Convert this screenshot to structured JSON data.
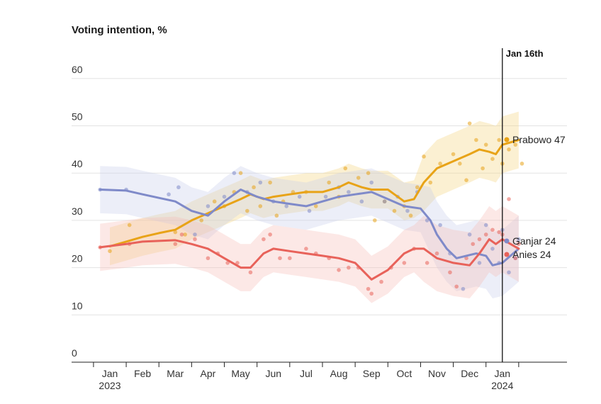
{
  "chart_data": {
    "type": "line",
    "title": "Voting intention, %",
    "ylim": [
      0,
      60
    ],
    "y_ticks": [
      "60",
      "50",
      "40",
      "30",
      "20",
      "10",
      "0"
    ],
    "y_tick_values": [
      60,
      50,
      40,
      30,
      20,
      10,
      0
    ],
    "grid": true,
    "x_ticks": [
      {
        "label": "Jan",
        "month": 0,
        "year": "2023"
      },
      {
        "label": "Feb",
        "month": 1
      },
      {
        "label": "Mar",
        "month": 2
      },
      {
        "label": "Apr",
        "month": 3
      },
      {
        "label": "May",
        "month": 4
      },
      {
        "label": "Jun",
        "month": 5
      },
      {
        "label": "Jul",
        "month": 6
      },
      {
        "label": "Aug",
        "month": 7
      },
      {
        "label": "Sep",
        "month": 8
      },
      {
        "label": "Oct",
        "month": 9
      },
      {
        "label": "Nov",
        "month": 10
      },
      {
        "label": "Dec",
        "month": 11
      },
      {
        "label": "Jan",
        "month": 12,
        "year": "2024"
      }
    ],
    "marker": {
      "label": "Jan 16th",
      "month": 12.0
    },
    "series": [
      {
        "name": "Prabowo",
        "end_label": "Prabowo 47",
        "color": "#e8a317",
        "band_color": "#f3d37e",
        "values": [
          [
            0,
            24.5
          ],
          [
            0.5,
            25.5
          ],
          [
            1,
            26.5
          ],
          [
            1.5,
            27.3
          ],
          [
            2,
            28
          ],
          [
            2.5,
            30
          ],
          [
            3,
            31.5
          ],
          [
            3.5,
            33
          ],
          [
            4,
            34.5
          ],
          [
            4.3,
            35.5
          ],
          [
            4.7,
            34.5
          ],
          [
            5,
            35
          ],
          [
            5.5,
            35.5
          ],
          [
            6,
            36
          ],
          [
            6.5,
            36
          ],
          [
            7,
            37
          ],
          [
            7.3,
            38
          ],
          [
            7.7,
            37
          ],
          [
            8,
            36.5
          ],
          [
            8.5,
            36.5
          ],
          [
            8.7,
            35.5
          ],
          [
            9,
            34
          ],
          [
            9.3,
            34.5
          ],
          [
            9.6,
            38
          ],
          [
            10,
            41
          ],
          [
            10.5,
            42.5
          ],
          [
            11,
            44
          ],
          [
            11.3,
            45
          ],
          [
            11.6,
            44.5
          ],
          [
            11.8,
            44
          ],
          [
            12,
            46
          ],
          [
            12.5,
            47
          ]
        ],
        "band": [
          4,
          6
        ],
        "points": [
          [
            0,
            23.5
          ],
          [
            0.6,
            29
          ],
          [
            2,
            27.5
          ],
          [
            2.3,
            27
          ],
          [
            2.8,
            30
          ],
          [
            3.2,
            34
          ],
          [
            3.5,
            33
          ],
          [
            3.8,
            36
          ],
          [
            4,
            40
          ],
          [
            4.2,
            32
          ],
          [
            4.4,
            37
          ],
          [
            4.6,
            33
          ],
          [
            4.9,
            38
          ],
          [
            5.1,
            31
          ],
          [
            5.3,
            34
          ],
          [
            5.6,
            36
          ],
          [
            6,
            36
          ],
          [
            6.3,
            33
          ],
          [
            6.7,
            38
          ],
          [
            7,
            35
          ],
          [
            7.2,
            41
          ],
          [
            7.6,
            39
          ],
          [
            7.9,
            40
          ],
          [
            8.1,
            30
          ],
          [
            8.4,
            34
          ],
          [
            8.7,
            32
          ],
          [
            9,
            33
          ],
          [
            9.2,
            31
          ],
          [
            9.4,
            37
          ],
          [
            9.6,
            43.5
          ],
          [
            9.8,
            38
          ],
          [
            10.1,
            42
          ],
          [
            10.5,
            44
          ],
          [
            10.7,
            42
          ],
          [
            10.9,
            38.5
          ],
          [
            11,
            50.5
          ],
          [
            11.2,
            47
          ],
          [
            11.4,
            41
          ],
          [
            11.5,
            46
          ],
          [
            11.7,
            43
          ],
          [
            11.9,
            47
          ],
          [
            12,
            42
          ],
          [
            12.2,
            45
          ],
          [
            12.4,
            46
          ],
          [
            12.6,
            42
          ]
        ]
      },
      {
        "name": "Ganjar",
        "end_label": "Ganjar 24",
        "color": "#7f8ac9",
        "band_color": "#c8cdec",
        "values": [
          [
            -0.3,
            36.5
          ],
          [
            0.5,
            36.3
          ],
          [
            1,
            35.5
          ],
          [
            2,
            34
          ],
          [
            2.5,
            32
          ],
          [
            3,
            31
          ],
          [
            3.5,
            34
          ],
          [
            4,
            36.5
          ],
          [
            4.5,
            35
          ],
          [
            5,
            34
          ],
          [
            5.5,
            33.5
          ],
          [
            6,
            33
          ],
          [
            6.5,
            34
          ],
          [
            7,
            35
          ],
          [
            7.5,
            35.5
          ],
          [
            8,
            36
          ],
          [
            8.5,
            34.5
          ],
          [
            9,
            33
          ],
          [
            9.5,
            32.5
          ],
          [
            9.8,
            30
          ],
          [
            10,
            27
          ],
          [
            10.3,
            24
          ],
          [
            10.6,
            22
          ],
          [
            10.9,
            22.5
          ],
          [
            11.2,
            23
          ],
          [
            11.5,
            22.5
          ],
          [
            11.7,
            20.5
          ],
          [
            12,
            21
          ],
          [
            12.5,
            24
          ]
        ],
        "band": [
          5,
          7
        ],
        "points": [
          [
            -0.3,
            36.5
          ],
          [
            0.5,
            36.5
          ],
          [
            1.8,
            35.5
          ],
          [
            2.1,
            37
          ],
          [
            2.6,
            27
          ],
          [
            3,
            33
          ],
          [
            3.5,
            35
          ],
          [
            3.8,
            40
          ],
          [
            4.2,
            36
          ],
          [
            4.6,
            38
          ],
          [
            5,
            34
          ],
          [
            5.4,
            33
          ],
          [
            5.8,
            35
          ],
          [
            6.1,
            32
          ],
          [
            6.6,
            35
          ],
          [
            7,
            37
          ],
          [
            7.3,
            36
          ],
          [
            7.7,
            34
          ],
          [
            8,
            38
          ],
          [
            8.4,
            34
          ],
          [
            8.8,
            35
          ],
          [
            9.1,
            32
          ],
          [
            9.4,
            36
          ],
          [
            9.7,
            30
          ],
          [
            10.1,
            29
          ],
          [
            10.4,
            23
          ],
          [
            10.8,
            15.5
          ],
          [
            11,
            27
          ],
          [
            11.3,
            21
          ],
          [
            11.5,
            29
          ],
          [
            11.7,
            24
          ],
          [
            11.9,
            21
          ],
          [
            12,
            28
          ],
          [
            12.2,
            19
          ],
          [
            12.4,
            22
          ],
          [
            12.5,
            26
          ]
        ]
      },
      {
        "name": "Anies",
        "end_label": "Anies 24",
        "color": "#e8625a",
        "band_color": "#f6bcb8",
        "values": [
          [
            -0.3,
            24.3
          ],
          [
            0.5,
            25
          ],
          [
            1,
            25.5
          ],
          [
            2,
            25.8
          ],
          [
            2.5,
            25
          ],
          [
            3,
            24
          ],
          [
            3.5,
            22
          ],
          [
            4,
            20
          ],
          [
            4.3,
            20
          ],
          [
            4.7,
            23
          ],
          [
            5,
            24
          ],
          [
            5.5,
            23.5
          ],
          [
            6,
            23
          ],
          [
            6.5,
            22.5
          ],
          [
            7,
            22
          ],
          [
            7.5,
            21
          ],
          [
            8,
            17.5
          ],
          [
            8.5,
            19.5
          ],
          [
            9,
            23
          ],
          [
            9.3,
            24
          ],
          [
            9.6,
            24
          ],
          [
            10,
            22
          ],
          [
            10.5,
            21
          ],
          [
            11,
            20.5
          ],
          [
            11.3,
            23
          ],
          [
            11.6,
            26
          ],
          [
            11.8,
            25
          ],
          [
            12,
            26
          ],
          [
            12.5,
            24
          ]
        ],
        "band": [
          5,
          7
        ],
        "points": [
          [
            -0.3,
            24.3
          ],
          [
            0.6,
            25
          ],
          [
            2,
            25
          ],
          [
            2.2,
            27
          ],
          [
            2.6,
            26
          ],
          [
            3,
            22
          ],
          [
            3.3,
            23
          ],
          [
            3.6,
            21
          ],
          [
            3.9,
            21
          ],
          [
            4.3,
            19
          ],
          [
            4.7,
            26
          ],
          [
            4.9,
            27
          ],
          [
            5.2,
            22
          ],
          [
            5.5,
            22
          ],
          [
            6,
            24
          ],
          [
            6.3,
            23
          ],
          [
            6.7,
            22
          ],
          [
            7,
            19.5
          ],
          [
            7.3,
            20
          ],
          [
            7.6,
            20
          ],
          [
            7.9,
            15.5
          ],
          [
            8,
            14.5
          ],
          [
            8.3,
            17
          ],
          [
            8.6,
            20
          ],
          [
            9,
            21
          ],
          [
            9.3,
            24
          ],
          [
            9.7,
            21
          ],
          [
            10,
            23
          ],
          [
            10.4,
            19
          ],
          [
            10.6,
            16
          ],
          [
            10.9,
            22
          ],
          [
            11.1,
            25
          ],
          [
            11.3,
            26
          ],
          [
            11.5,
            27
          ],
          [
            11.7,
            28
          ],
          [
            11.9,
            27.5
          ],
          [
            12,
            27
          ],
          [
            12.2,
            34.5
          ],
          [
            12.4,
            22
          ],
          [
            12.5,
            25
          ]
        ]
      }
    ]
  }
}
